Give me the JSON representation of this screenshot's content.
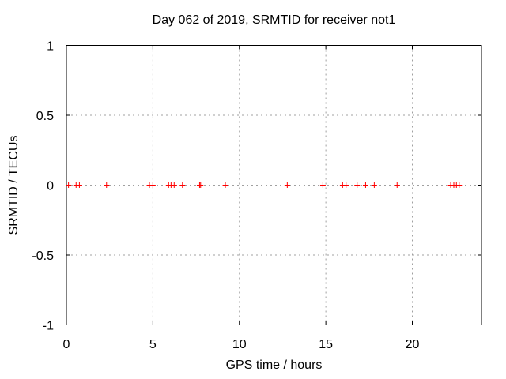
{
  "window": {
    "background": "#ffffff"
  },
  "chart_data": {
    "type": "scatter",
    "title": "Day 062 of 2019, SRMTID for receiver not1",
    "xlabel": "GPS time / hours",
    "ylabel": "SRMTID / TECUs",
    "xlim": [
      0,
      24
    ],
    "ylim": [
      -1,
      1
    ],
    "xticks": [
      0,
      5,
      10,
      15,
      20
    ],
    "xtick_labels": [
      "0",
      "5",
      "10",
      "15",
      "20"
    ],
    "yticks": [
      1,
      0.5,
      0,
      -0.5,
      -1
    ],
    "ytick_labels": [
      "1",
      "0.5",
      "0",
      "-0.5",
      "-1"
    ],
    "grid": true,
    "legend": "none",
    "style": {
      "marker_shape": "plus",
      "marker_color": "#ff0000",
      "marker_size": 7,
      "grid_color": "#a0a0a0",
      "axis_color": "#000000",
      "text_color": "#000000",
      "background": "#ffffff"
    },
    "series": [
      {
        "name": "SRMTID",
        "x": [
          0.12,
          0.56,
          0.75,
          2.32,
          4.8,
          5.0,
          5.91,
          6.05,
          6.23,
          6.71,
          7.7,
          7.76,
          9.19,
          12.77,
          14.83,
          15.97,
          16.17,
          16.81,
          17.3,
          17.8,
          19.12,
          22.22,
          22.4,
          22.55,
          22.71
        ],
        "y": [
          0,
          0,
          0,
          0,
          0,
          0,
          0,
          0,
          0,
          0,
          0,
          0,
          0,
          0,
          0,
          0,
          0,
          0,
          0,
          0,
          0,
          0,
          0,
          0,
          0
        ]
      }
    ]
  }
}
